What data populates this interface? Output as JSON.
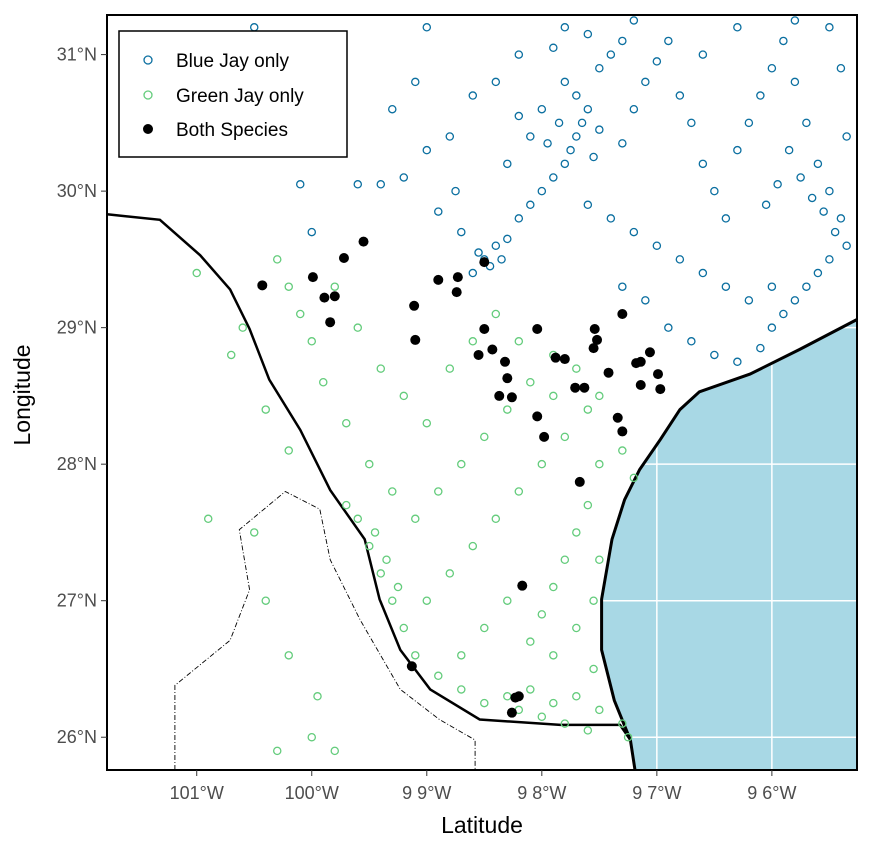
{
  "chart_data": {
    "type": "scatter",
    "xlabel": "Latitude",
    "ylabel": "Longitude",
    "xlim": [
      -101.78,
      -95.26
    ],
    "ylim": [
      25.76,
      31.29
    ],
    "grid": true,
    "legend_placement": "top-left",
    "x_ticks": [
      {
        "value": -101,
        "label": "101°W"
      },
      {
        "value": -100,
        "label": "100°W"
      },
      {
        "value": -99,
        "label": "9 9°W"
      },
      {
        "value": -98,
        "label": "9 8°W"
      },
      {
        "value": -97,
        "label": "9 7°W"
      },
      {
        "value": -96,
        "label": "9 6°W"
      }
    ],
    "y_ticks": [
      {
        "value": 31,
        "label": "31°N"
      },
      {
        "value": 30,
        "label": "30°N"
      },
      {
        "value": 29,
        "label": "29°N"
      },
      {
        "value": 28,
        "label": "28°N"
      },
      {
        "value": 27,
        "label": "27°N"
      },
      {
        "value": 26,
        "label": "26°N"
      }
    ],
    "colors": {
      "water": "#a8d8e5",
      "land": "#ffffff",
      "blue_jay": "#0b6fa0",
      "green_jay": "#64cc7c",
      "both": "#000000"
    },
    "series": [
      {
        "name": "Blue Jay only",
        "marker": "open-circle",
        "color": "#0b6fa0",
        "points": [
          [
            -98.5,
            29.5
          ],
          [
            -98.45,
            29.45
          ],
          [
            -98.55,
            29.55
          ],
          [
            -98.4,
            29.6
          ],
          [
            -98.35,
            29.5
          ],
          [
            -98.6,
            29.4
          ],
          [
            -98.3,
            29.65
          ],
          [
            -98.2,
            29.8
          ],
          [
            -98.1,
            29.9
          ],
          [
            -98.0,
            30.0
          ],
          [
            -97.9,
            30.1
          ],
          [
            -97.8,
            30.2
          ],
          [
            -97.75,
            30.3
          ],
          [
            -97.7,
            30.4
          ],
          [
            -97.65,
            30.5
          ],
          [
            -97.6,
            30.6
          ],
          [
            -97.7,
            30.7
          ],
          [
            -97.8,
            30.8
          ],
          [
            -97.5,
            30.9
          ],
          [
            -97.4,
            31.0
          ],
          [
            -97.3,
            31.1
          ],
          [
            -97.6,
            31.15
          ],
          [
            -97.9,
            31.05
          ],
          [
            -98.0,
            30.6
          ],
          [
            -98.1,
            30.4
          ],
          [
            -97.95,
            30.35
          ],
          [
            -97.85,
            30.5
          ],
          [
            -97.55,
            30.25
          ],
          [
            -97.5,
            30.45
          ],
          [
            -97.3,
            30.35
          ],
          [
            -97.2,
            30.6
          ],
          [
            -97.1,
            30.8
          ],
          [
            -97.0,
            30.95
          ],
          [
            -96.9,
            31.1
          ],
          [
            -96.8,
            30.7
          ],
          [
            -96.7,
            30.5
          ],
          [
            -96.6,
            30.2
          ],
          [
            -96.5,
            30.0
          ],
          [
            -96.4,
            29.8
          ],
          [
            -96.3,
            30.3
          ],
          [
            -96.2,
            30.5
          ],
          [
            -96.1,
            30.7
          ],
          [
            -96.0,
            30.9
          ],
          [
            -95.9,
            31.1
          ],
          [
            -95.8,
            30.8
          ],
          [
            -95.7,
            30.5
          ],
          [
            -95.6,
            30.2
          ],
          [
            -95.5,
            30.0
          ],
          [
            -95.4,
            29.8
          ],
          [
            -95.35,
            29.6
          ],
          [
            -95.45,
            29.7
          ],
          [
            -95.55,
            29.85
          ],
          [
            -95.65,
            29.95
          ],
          [
            -95.75,
            30.1
          ],
          [
            -95.85,
            30.3
          ],
          [
            -95.95,
            30.05
          ],
          [
            -96.05,
            29.9
          ],
          [
            -95.5,
            29.5
          ],
          [
            -95.6,
            29.4
          ],
          [
            -95.7,
            29.3
          ],
          [
            -95.8,
            29.2
          ],
          [
            -95.9,
            29.1
          ],
          [
            -96.0,
            29.0
          ],
          [
            -96.2,
            29.2
          ],
          [
            -96.4,
            29.3
          ],
          [
            -96.6,
            29.4
          ],
          [
            -96.8,
            29.5
          ],
          [
            -97.0,
            29.6
          ],
          [
            -97.2,
            29.7
          ],
          [
            -97.4,
            29.8
          ],
          [
            -97.6,
            29.9
          ],
          [
            -97.3,
            29.3
          ],
          [
            -97.1,
            29.2
          ],
          [
            -96.9,
            29.0
          ],
          [
            -96.7,
            28.9
          ],
          [
            -96.5,
            28.8
          ],
          [
            -96.3,
            28.75
          ],
          [
            -96.1,
            28.85
          ],
          [
            -96.0,
            29.3
          ],
          [
            -95.35,
            30.4
          ],
          [
            -95.4,
            30.9
          ],
          [
            -95.5,
            31.2
          ],
          [
            -95.8,
            31.25
          ],
          [
            -96.3,
            31.2
          ],
          [
            -96.6,
            31.0
          ],
          [
            -97.2,
            31.25
          ],
          [
            -97.8,
            31.2
          ],
          [
            -98.2,
            31.0
          ],
          [
            -98.4,
            30.8
          ],
          [
            -98.6,
            30.7
          ],
          [
            -98.8,
            30.4
          ],
          [
            -99.0,
            30.3
          ],
          [
            -99.2,
            30.1
          ],
          [
            -99.4,
            30.05
          ],
          [
            -98.9,
            29.85
          ],
          [
            -98.7,
            29.7
          ],
          [
            -98.75,
            30.0
          ],
          [
            -99.1,
            30.8
          ],
          [
            -99.3,
            30.6
          ],
          [
            -98.3,
            30.2
          ],
          [
            -98.2,
            30.55
          ],
          [
            -99.6,
            30.05
          ],
          [
            -100.0,
            29.7
          ],
          [
            -100.1,
            30.05
          ],
          [
            -99.0,
            31.2
          ],
          [
            -100.5,
            31.2
          ]
        ]
      },
      {
        "name": "Green Jay only",
        "marker": "open-circle",
        "color": "#64cc7c",
        "points": [
          [
            -98.2,
            26.2
          ],
          [
            -98.0,
            26.15
          ],
          [
            -97.8,
            26.1
          ],
          [
            -97.6,
            26.05
          ],
          [
            -97.5,
            26.2
          ],
          [
            -97.7,
            26.3
          ],
          [
            -97.9,
            26.25
          ],
          [
            -98.1,
            26.35
          ],
          [
            -98.3,
            26.3
          ],
          [
            -98.5,
            26.25
          ],
          [
            -98.7,
            26.35
          ],
          [
            -98.9,
            26.45
          ],
          [
            -99.1,
            26.6
          ],
          [
            -99.2,
            26.8
          ],
          [
            -99.3,
            27.0
          ],
          [
            -99.4,
            27.2
          ],
          [
            -99.5,
            27.4
          ],
          [
            -99.6,
            27.6
          ],
          [
            -99.7,
            27.7
          ],
          [
            -99.45,
            27.5
          ],
          [
            -99.35,
            27.3
          ],
          [
            -99.25,
            27.1
          ],
          [
            -99.0,
            27.0
          ],
          [
            -98.8,
            27.2
          ],
          [
            -98.6,
            27.4
          ],
          [
            -98.4,
            27.6
          ],
          [
            -98.2,
            27.8
          ],
          [
            -98.0,
            28.0
          ],
          [
            -97.8,
            28.2
          ],
          [
            -97.6,
            28.4
          ],
          [
            -97.9,
            28.5
          ],
          [
            -98.1,
            28.6
          ],
          [
            -98.3,
            28.4
          ],
          [
            -98.5,
            28.2
          ],
          [
            -98.7,
            28.0
          ],
          [
            -98.9,
            27.8
          ],
          [
            -99.1,
            27.6
          ],
          [
            -99.3,
            27.8
          ],
          [
            -99.5,
            28.0
          ],
          [
            -99.7,
            28.3
          ],
          [
            -99.9,
            28.6
          ],
          [
            -100.0,
            28.9
          ],
          [
            -100.1,
            29.1
          ],
          [
            -100.2,
            29.3
          ],
          [
            -99.8,
            29.3
          ],
          [
            -99.6,
            29.0
          ],
          [
            -99.4,
            28.7
          ],
          [
            -99.2,
            28.5
          ],
          [
            -99.0,
            28.3
          ],
          [
            -98.8,
            28.7
          ],
          [
            -98.6,
            28.9
          ],
          [
            -98.4,
            29.1
          ],
          [
            -98.2,
            28.9
          ],
          [
            -97.9,
            28.8
          ],
          [
            -97.7,
            28.7
          ],
          [
            -97.5,
            28.5
          ],
          [
            -97.5,
            28.0
          ],
          [
            -97.6,
            27.7
          ],
          [
            -97.7,
            27.5
          ],
          [
            -97.8,
            27.3
          ],
          [
            -97.9,
            27.1
          ],
          [
            -98.0,
            26.9
          ],
          [
            -98.1,
            26.7
          ],
          [
            -97.9,
            26.6
          ],
          [
            -97.7,
            26.8
          ],
          [
            -97.55,
            27.0
          ],
          [
            -97.5,
            27.3
          ],
          [
            -97.55,
            26.5
          ],
          [
            -98.3,
            27.0
          ],
          [
            -98.5,
            26.8
          ],
          [
            -98.7,
            26.6
          ],
          [
            -100.6,
            29.0
          ],
          [
            -100.7,
            28.8
          ],
          [
            -100.4,
            28.4
          ],
          [
            -100.2,
            28.1
          ],
          [
            -100.5,
            27.5
          ],
          [
            -100.9,
            27.6
          ],
          [
            -100.4,
            27.0
          ],
          [
            -100.2,
            26.6
          ],
          [
            -99.95,
            26.3
          ],
          [
            -99.8,
            25.9
          ],
          [
            -100.3,
            25.9
          ],
          [
            -100.0,
            26.0
          ],
          [
            -101.0,
            29.4
          ],
          [
            -100.3,
            29.5
          ],
          [
            -97.3,
            28.1
          ],
          [
            -97.2,
            27.9
          ],
          [
            -97.3,
            26.1
          ],
          [
            -97.25,
            26.0
          ]
        ]
      },
      {
        "name": "Both Species",
        "marker": "filled-circle",
        "color": "#000000",
        "points": [
          [
            -100.43,
            29.31
          ],
          [
            -99.99,
            29.37
          ],
          [
            -99.89,
            29.22
          ],
          [
            -99.8,
            29.23
          ],
          [
            -99.84,
            29.04
          ],
          [
            -99.72,
            29.51
          ],
          [
            -99.55,
            29.63
          ],
          [
            -99.11,
            29.16
          ],
          [
            -99.1,
            28.91
          ],
          [
            -98.9,
            29.35
          ],
          [
            -98.73,
            29.37
          ],
          [
            -98.74,
            29.26
          ],
          [
            -98.5,
            29.48
          ],
          [
            -98.5,
            28.99
          ],
          [
            -98.55,
            28.8
          ],
          [
            -98.43,
            28.84
          ],
          [
            -98.32,
            28.75
          ],
          [
            -98.3,
            28.63
          ],
          [
            -98.37,
            28.5
          ],
          [
            -98.26,
            28.49
          ],
          [
            -98.04,
            28.99
          ],
          [
            -97.88,
            28.78
          ],
          [
            -98.04,
            28.35
          ],
          [
            -97.98,
            28.2
          ],
          [
            -97.71,
            28.56
          ],
          [
            -97.63,
            28.56
          ],
          [
            -97.8,
            28.77
          ],
          [
            -97.54,
            28.99
          ],
          [
            -97.52,
            28.91
          ],
          [
            -97.55,
            28.85
          ],
          [
            -97.42,
            28.67
          ],
          [
            -97.3,
            29.1
          ],
          [
            -97.18,
            28.74
          ],
          [
            -97.14,
            28.75
          ],
          [
            -97.06,
            28.82
          ],
          [
            -96.99,
            28.66
          ],
          [
            -97.14,
            28.58
          ],
          [
            -96.97,
            28.55
          ],
          [
            -97.34,
            28.34
          ],
          [
            -97.3,
            28.24
          ],
          [
            -97.67,
            27.87
          ],
          [
            -98.17,
            27.11
          ],
          [
            -99.13,
            26.52
          ],
          [
            -98.23,
            26.29
          ],
          [
            -98.2,
            26.3
          ],
          [
            -98.26,
            26.18
          ]
        ]
      }
    ],
    "map_lines": {
      "coastline": [
        [
          -95.26,
          29.06
        ],
        [
          -95.76,
          28.84
        ],
        [
          -96.19,
          28.66
        ],
        [
          -96.63,
          28.53
        ],
        [
          -96.8,
          28.4
        ],
        [
          -96.97,
          28.18
        ],
        [
          -97.15,
          27.96
        ],
        [
          -97.28,
          27.74
        ],
        [
          -97.39,
          27.45
        ],
        [
          -97.48,
          27.01
        ],
        [
          -97.48,
          26.64
        ],
        [
          -97.37,
          26.27
        ],
        [
          -97.23,
          25.98
        ],
        [
          -97.19,
          25.76
        ]
      ],
      "international_border": [
        [
          -101.78,
          29.83
        ],
        [
          -101.32,
          29.79
        ],
        [
          -100.97,
          29.53
        ],
        [
          -100.71,
          29.28
        ],
        [
          -100.54,
          28.99
        ],
        [
          -100.37,
          28.62
        ],
        [
          -100.1,
          28.25
        ],
        [
          -99.84,
          27.81
        ],
        [
          -99.54,
          27.45
        ],
        [
          -99.41,
          27.01
        ],
        [
          -99.23,
          26.64
        ],
        [
          -98.97,
          26.35
        ],
        [
          -98.54,
          26.13
        ],
        [
          -97.84,
          26.09
        ],
        [
          -97.32,
          26.09
        ],
        [
          -97.23,
          25.98
        ]
      ],
      "state_border": [
        [
          -101.19,
          25.76
        ],
        [
          -101.19,
          26.38
        ],
        [
          -100.71,
          26.71
        ],
        [
          -100.54,
          27.08
        ],
        [
          -100.63,
          27.52
        ],
        [
          -100.23,
          27.8
        ],
        [
          -99.93,
          27.67
        ],
        [
          -99.84,
          27.3
        ],
        [
          -99.58,
          26.86
        ],
        [
          -99.23,
          26.35
        ],
        [
          -98.89,
          26.13
        ],
        [
          -98.58,
          25.98
        ],
        [
          -98.58,
          25.76
        ]
      ]
    }
  }
}
